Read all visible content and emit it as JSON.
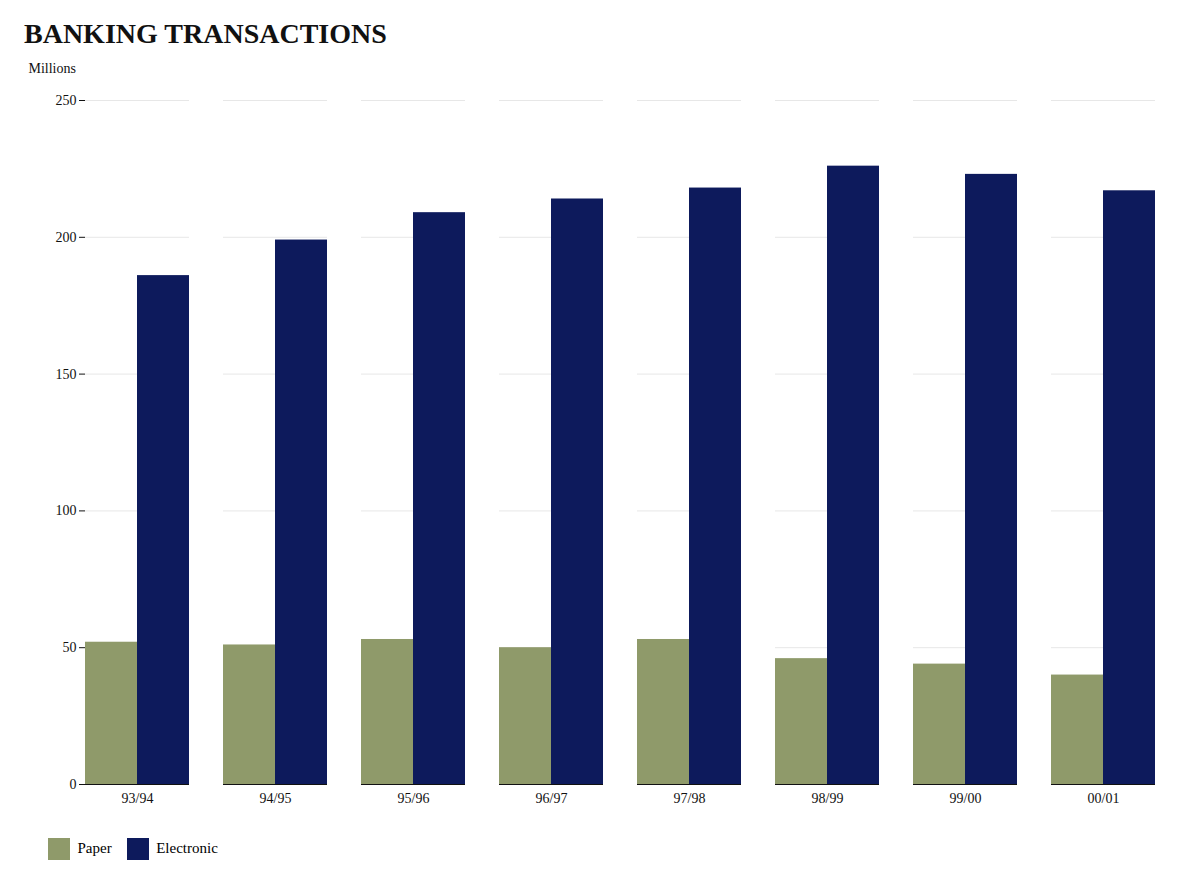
{
  "chart_data": {
    "type": "bar",
    "title": "BANKING TRANSACTIONS",
    "ylabel": "Millions",
    "categories": [
      "93/94",
      "94/95",
      "95/96",
      "96/97",
      "97/98",
      "98/99",
      "99/00",
      "00/01"
    ],
    "series": [
      {
        "name": "Paper",
        "color": "#8f9a6a",
        "values": [
          52,
          51,
          53,
          50,
          53,
          46,
          44,
          40
        ]
      },
      {
        "name": "Electronic",
        "color": "#0d1a5c",
        "values": [
          186,
          199,
          209,
          214,
          218,
          226,
          223,
          217
        ]
      }
    ],
    "ylim": [
      0,
      250
    ],
    "yticks": [
      0,
      50,
      100,
      150,
      200,
      250
    ],
    "grid": true,
    "legend": "bottom"
  }
}
